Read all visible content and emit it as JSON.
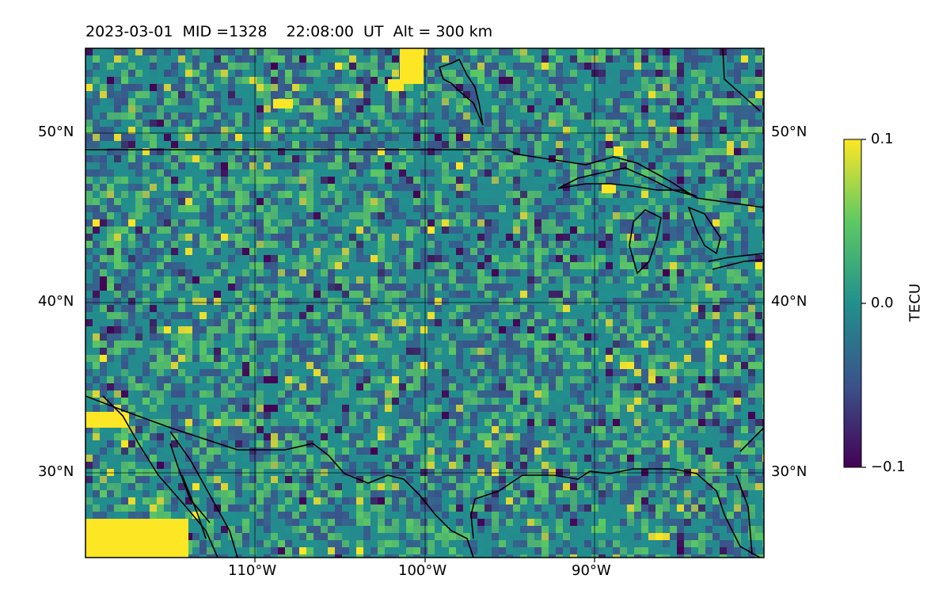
{
  "header": {
    "title": "2023-03-01  MID =1328    22:08:00  UT  Alt = 300 km"
  },
  "map": {
    "lat_labels_left": [
      "50°N",
      "40°N",
      "30°N"
    ],
    "lat_labels_right": [
      "50°N",
      "40°N",
      "30°N"
    ],
    "lon_labels": [
      "110°W",
      "100°W",
      "90°W"
    ],
    "lon_range": [
      -120,
      -80
    ],
    "lat_range": [
      25,
      55
    ],
    "colormap": "viridis"
  },
  "colorbar": {
    "label": "TECU",
    "ticks": [
      "0.1",
      "0.0",
      "−0.1"
    ],
    "range": [
      -0.1,
      0.1
    ],
    "colors": [
      "#440154",
      "#3b528b",
      "#21908d",
      "#5dc963",
      "#fde725"
    ]
  }
}
